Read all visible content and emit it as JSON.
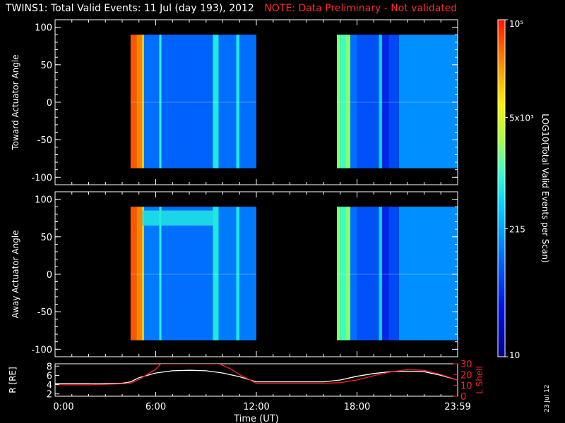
{
  "title": "TWINS1: Total Valid Events: 11 Jul (day 193), 2012",
  "note": "NOTE: Data Preliminary - Not validated",
  "stamp": "23 Jul 12",
  "colors": {
    "background": "#000000",
    "note": "#ff2a2a",
    "r_line": "#ffffff",
    "lshell_line": "#ff2020"
  },
  "chart_data": [
    {
      "type": "heatmap",
      "ylabel": "Toward Actuator Angle",
      "ylim": [
        -110,
        110
      ],
      "yticks": [
        100,
        50,
        0,
        -50,
        -100
      ],
      "xlim": [
        0,
        24
      ],
      "data_blocks": [
        [
          4.5,
          12.0
        ],
        [
          16.8,
          24.0
        ]
      ],
      "angle_range": [
        -88,
        90
      ],
      "columns": [
        {
          "x0": 4.5,
          "x1": 4.85,
          "level": 0.93
        },
        {
          "x0": 4.85,
          "x1": 5.2,
          "level": 0.88
        },
        {
          "x0": 5.2,
          "x1": 5.3,
          "level": 0.72
        },
        {
          "x0": 5.3,
          "x1": 6.2,
          "level": 0.3
        },
        {
          "x0": 6.2,
          "x1": 6.35,
          "level": 0.52
        },
        {
          "x0": 6.35,
          "x1": 9.4,
          "level": 0.28
        },
        {
          "x0": 9.4,
          "x1": 9.75,
          "level": 0.5
        },
        {
          "x0": 9.75,
          "x1": 10.8,
          "level": 0.3
        },
        {
          "x0": 10.8,
          "x1": 11.0,
          "level": 0.5
        },
        {
          "x0": 11.0,
          "x1": 12.0,
          "level": 0.3
        },
        {
          "x0": 16.8,
          "x1": 17.0,
          "level": 0.62
        },
        {
          "x0": 17.0,
          "x1": 17.3,
          "level": 0.55
        },
        {
          "x0": 17.3,
          "x1": 17.6,
          "level": 0.62
        },
        {
          "x0": 17.6,
          "x1": 18.0,
          "level": 0.3
        },
        {
          "x0": 18.0,
          "x1": 19.3,
          "level": 0.25
        },
        {
          "x0": 19.3,
          "x1": 19.5,
          "level": 0.45
        },
        {
          "x0": 19.5,
          "x1": 19.9,
          "level": 0.18
        },
        {
          "x0": 19.9,
          "x1": 20.5,
          "level": 0.24
        },
        {
          "x0": 20.5,
          "x1": 24.0,
          "level": 0.35
        }
      ]
    },
    {
      "type": "heatmap",
      "ylabel": "Away Actuator Angle",
      "ylim": [
        -110,
        110
      ],
      "yticks": [
        100,
        50,
        0,
        -50,
        -100
      ],
      "xlim": [
        0,
        24
      ],
      "data_blocks": [
        [
          4.5,
          12.0
        ],
        [
          16.8,
          24.0
        ]
      ],
      "angle_range": [
        -88,
        90
      ],
      "columns": [
        {
          "x0": 4.5,
          "x1": 4.85,
          "level": 0.93
        },
        {
          "x0": 4.85,
          "x1": 5.2,
          "level": 0.88
        },
        {
          "x0": 5.2,
          "x1": 5.3,
          "level": 0.72
        },
        {
          "x0": 5.3,
          "x1": 6.2,
          "level": 0.32
        },
        {
          "x0": 6.2,
          "x1": 6.35,
          "level": 0.52
        },
        {
          "x0": 6.35,
          "x1": 9.4,
          "level": 0.3
        },
        {
          "x0": 9.4,
          "x1": 9.75,
          "level": 0.5
        },
        {
          "x0": 9.75,
          "x1": 10.8,
          "level": 0.32
        },
        {
          "x0": 10.8,
          "x1": 11.0,
          "level": 0.5
        },
        {
          "x0": 11.0,
          "x1": 12.0,
          "level": 0.32
        },
        {
          "x0": 16.8,
          "x1": 17.0,
          "level": 0.62
        },
        {
          "x0": 17.0,
          "x1": 17.3,
          "level": 0.55
        },
        {
          "x0": 17.3,
          "x1": 17.6,
          "level": 0.62
        },
        {
          "x0": 17.6,
          "x1": 18.0,
          "level": 0.3
        },
        {
          "x0": 18.0,
          "x1": 19.3,
          "level": 0.25
        },
        {
          "x0": 19.3,
          "x1": 19.5,
          "level": 0.45
        },
        {
          "x0": 19.5,
          "x1": 19.9,
          "level": 0.18
        },
        {
          "x0": 19.9,
          "x1": 20.5,
          "level": 0.24
        },
        {
          "x0": 20.5,
          "x1": 24.0,
          "level": 0.35
        }
      ],
      "bands": [
        {
          "x0": 5.2,
          "x1": 9.5,
          "y0": 65,
          "y1": 85,
          "level": 0.5
        }
      ]
    },
    {
      "type": "line",
      "ylabel": "R [RE]",
      "ylabel_right": "L Shell",
      "xlabel": "Time (UT)",
      "xlim": [
        0,
        24
      ],
      "xticks": [
        "0:00",
        "6:00",
        "12:00",
        "18:00",
        "23:59"
      ],
      "xtick_values": [
        0,
        6,
        12,
        18,
        24
      ],
      "ylim": [
        1.5,
        8.5
      ],
      "yticks": [
        8,
        6,
        4,
        2
      ],
      "ylim_right": [
        0,
        30
      ],
      "yticks_right": [
        30,
        20,
        10,
        0
      ],
      "ytick_labels_right": [
        "30",
        "20",
        "10",
        "0"
      ],
      "series": [
        {
          "axis": "left",
          "x": [
            0,
            2,
            4,
            4.5,
            5,
            6,
            7,
            8,
            9,
            10,
            11,
            12,
            13,
            14,
            15,
            16,
            17,
            18,
            19,
            20,
            21,
            22,
            23,
            24
          ],
          "y": [
            4.2,
            4.2,
            4.3,
            4.6,
            5.5,
            6.5,
            7.0,
            7.1,
            7.0,
            6.5,
            5.7,
            4.6,
            4.6,
            4.6,
            4.6,
            4.6,
            5.0,
            5.8,
            6.4,
            6.8,
            6.9,
            6.8,
            6.0,
            5.0
          ]
        },
        {
          "axis": "right",
          "x": [
            0,
            2,
            4,
            4.5,
            5,
            6,
            6.3,
            9.8,
            10.5,
            11,
            11.5,
            12,
            13,
            14,
            15,
            16,
            17,
            18,
            19,
            20,
            21,
            22,
            23,
            24
          ],
          "y": [
            10.5,
            10.5,
            11.5,
            12,
            15.5,
            25,
            30,
            30,
            25,
            20,
            16,
            12,
            12,
            12,
            12,
            12,
            12.5,
            15,
            19,
            22.5,
            24.5,
            24,
            20,
            15
          ]
        }
      ]
    }
  ],
  "colorbar": {
    "ylabel": "LOG10(Total Valid Events per Scan)",
    "ticks": [
      {
        "label": "10⁵",
        "level": 1.0
      },
      {
        "label": "5x10³",
        "level": 0.71
      },
      {
        "label": "215",
        "level": 0.38
      },
      {
        "label": "10",
        "level": 0.0
      }
    ]
  }
}
